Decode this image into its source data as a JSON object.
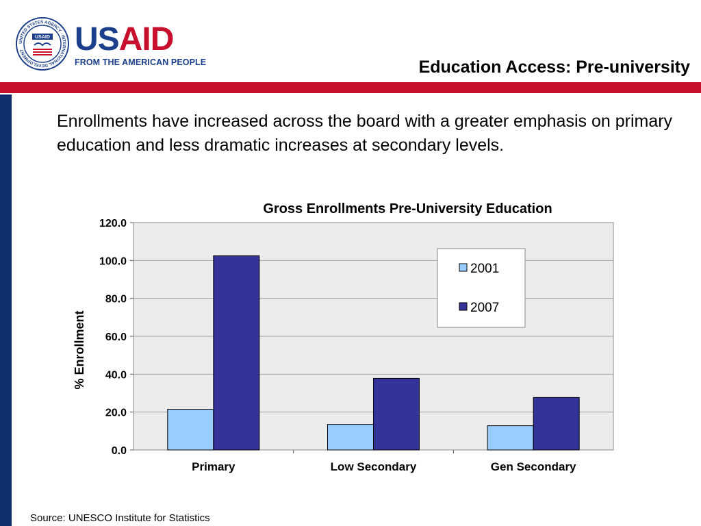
{
  "header": {
    "logo_word_us": "US",
    "logo_word_aid": "AID",
    "logo_tagline": "FROM THE AMERICAN PEOPLE",
    "seal_text": "UNITED STATES AGENCY · INTERNATIONAL DEVELOPMENT",
    "seal_center": "USAID",
    "slide_title": "Education Access: Pre-university"
  },
  "intro_text": "Enrollments have increased across the board with a greater emphasis on primary education and less dramatic increases at secondary levels.",
  "footer": {
    "source": "Source: UNESCO Institute for Statistics"
  },
  "colors": {
    "brand_blue": "#1b3f8b",
    "brand_red": "#c8102e",
    "sidebar_navy": "#0f2f6e"
  },
  "chart_data": {
    "type": "bar",
    "title": "Gross Enrollments Pre-University Education",
    "xlabel": "",
    "ylabel": "% Enrollment",
    "categories": [
      "Primary",
      "Low Secondary",
      "Gen Secondary"
    ],
    "series": [
      {
        "name": "2001",
        "values": [
          21.5,
          13.5,
          12.8
        ],
        "color": "#99ccff"
      },
      {
        "name": "2007",
        "values": [
          102.5,
          37.8,
          27.7
        ],
        "color": "#333399"
      }
    ],
    "ylim": [
      0,
      120
    ],
    "yticks": [
      "0.0",
      "20.0",
      "40.0",
      "60.0",
      "80.0",
      "100.0",
      "120.0"
    ],
    "grid": true,
    "legend_position": "top-right"
  }
}
